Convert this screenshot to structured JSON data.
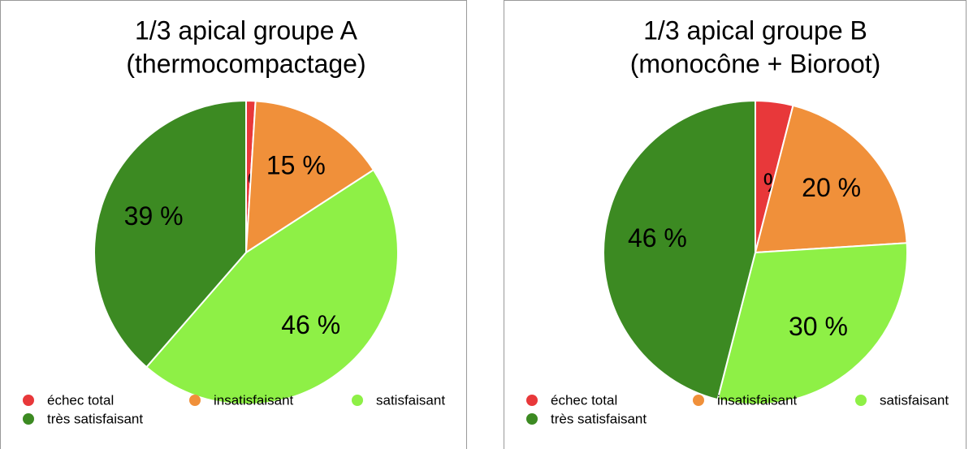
{
  "chart_data": [
    {
      "type": "pie",
      "title": "1/3 apical groupe A",
      "subtitle": "(thermocompactage)",
      "categories": [
        "échec total",
        "insatisfaisant",
        "satisfaisant",
        "très satisfaisant"
      ],
      "values": [
        1,
        15,
        46,
        39
      ],
      "value_labels": [
        "1 %",
        "15 %",
        "46 %",
        "39 %"
      ],
      "colors": [
        "#e8383a",
        "#f0903a",
        "#8ef046",
        "#3c8a22"
      ]
    },
    {
      "type": "pie",
      "title": "1/3 apical groupe B",
      "subtitle": "(monocône + Bioroot)",
      "categories": [
        "échec total",
        "insatisfaisant",
        "satisfaisant",
        "très satisfaisant"
      ],
      "values": [
        4,
        20,
        30,
        46
      ],
      "value_labels": [
        "4 %",
        "20 %",
        "30 %",
        "46 %"
      ],
      "colors": [
        "#e8383a",
        "#f0903a",
        "#8ef046",
        "#3c8a22"
      ]
    }
  ]
}
